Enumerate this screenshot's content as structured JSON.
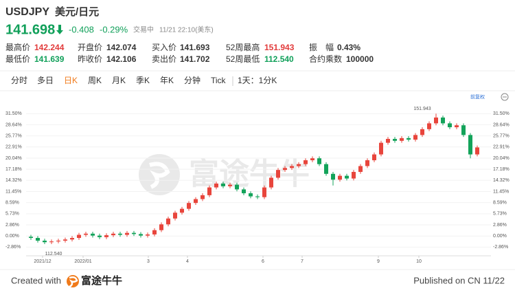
{
  "header": {
    "symbol": "USDJPY",
    "name": "美元/日元",
    "price": "141.698",
    "change": "-0.408",
    "change_pct": "-0.29%",
    "status": "交易中",
    "time": "11/21 22:10(美东)"
  },
  "stats": [
    [
      {
        "label": "最高价",
        "value": "142.244",
        "color": "#e23b3b"
      },
      {
        "label": "开盘价",
        "value": "142.074",
        "color": "#333333"
      },
      {
        "label": "买入价",
        "value": "141.693",
        "color": "#333333"
      },
      {
        "label": "52周最高",
        "value": "151.943",
        "color": "#e23b3b"
      },
      {
        "label": "振　幅",
        "value": "0.43%",
        "color": "#333333"
      }
    ],
    [
      {
        "label": "最低价",
        "value": "141.639",
        "color": "#11a05a"
      },
      {
        "label": "昨收价",
        "value": "142.106",
        "color": "#333333"
      },
      {
        "label": "卖出价",
        "value": "141.702",
        "color": "#333333"
      },
      {
        "label": "52周最低",
        "value": "112.540",
        "color": "#11a05a"
      },
      {
        "label": "合约乘数",
        "value": "100000",
        "color": "#333333"
      }
    ]
  ],
  "tabs": [
    "分时",
    "多日",
    "日K",
    "周K",
    "月K",
    "季K",
    "年K",
    "分钟",
    "Tick",
    "1天：1分K"
  ],
  "chart_data": {
    "type": "candlestick",
    "adjust_label": "前复权",
    "watermark": "富途牛牛",
    "annotations": {
      "high": "151.943",
      "low": "112.540"
    },
    "up_color": "#e8453c",
    "down_color": "#13a35a",
    "grid": true,
    "x": [
      0,
      1,
      2,
      3,
      4,
      5,
      6,
      7,
      8,
      9,
      10,
      11,
      12,
      13,
      14,
      15,
      16,
      17,
      18,
      19,
      20,
      21,
      22,
      23,
      24,
      25,
      26,
      27,
      28,
      29,
      30,
      31,
      32,
      33,
      34,
      35,
      36,
      37,
      38,
      39,
      40,
      41,
      42,
      43,
      44,
      45,
      46,
      47,
      48,
      49,
      50,
      51,
      52,
      53,
      54,
      55,
      56,
      57,
      58,
      59,
      60,
      61,
      62,
      63,
      64,
      65
    ],
    "open": [
      -0.2,
      -0.5,
      -1.2,
      -1.6,
      -1.4,
      -1.2,
      -0.9,
      -0.5,
      0.3,
      0.6,
      0.1,
      -0.3,
      0.2,
      0.6,
      0.3,
      0.8,
      0.5,
      0.1,
      0.4,
      1.5,
      3.0,
      4.5,
      6.0,
      7.0,
      8.5,
      9.5,
      10.5,
      12.5,
      13.5,
      12.8,
      13.2,
      12.0,
      11.0,
      10.2,
      10.0,
      12.5,
      15.0,
      17.0,
      17.5,
      18.0,
      18.5,
      19.5,
      20.0,
      18.5,
      16.0,
      14.5,
      15.5,
      14.8,
      16.5,
      18.0,
      19.5,
      21.0,
      24.0,
      25.0,
      24.5,
      25.2,
      24.8,
      26.0,
      27.5,
      29.0,
      30.5,
      29.0,
      28.0,
      28.5,
      26.0,
      21.0
    ],
    "high": [
      0.3,
      0.0,
      -0.7,
      -0.9,
      -0.7,
      -0.4,
      0.0,
      0.8,
      1.1,
      1.1,
      0.6,
      0.7,
      1.1,
      1.1,
      1.3,
      1.3,
      1.0,
      0.9,
      2.0,
      3.5,
      5.0,
      6.5,
      7.5,
      9.0,
      10.0,
      11.0,
      13.0,
      14.0,
      14.0,
      13.7,
      13.7,
      12.5,
      11.5,
      10.7,
      13.0,
      15.5,
      17.5,
      18.0,
      18.5,
      19.0,
      20.0,
      20.5,
      20.5,
      19.0,
      16.5,
      16.0,
      16.0,
      17.0,
      18.5,
      20.0,
      21.5,
      24.5,
      25.5,
      25.5,
      25.7,
      25.7,
      26.5,
      28.0,
      29.5,
      31.5,
      31.0,
      29.5,
      29.0,
      29.0,
      26.5,
      23.3
    ],
    "low": [
      -1.0,
      -1.7,
      -2.1,
      -2.1,
      -1.9,
      -1.7,
      -1.4,
      -1.0,
      -0.2,
      -0.4,
      -0.8,
      -0.8,
      -0.3,
      -0.2,
      -0.2,
      0.0,
      -0.4,
      -0.4,
      -0.1,
      1.0,
      2.5,
      4.0,
      5.5,
      6.5,
      8.0,
      9.0,
      10.0,
      12.0,
      12.3,
      12.3,
      11.5,
      10.5,
      9.7,
      9.5,
      9.5,
      12.0,
      14.5,
      16.5,
      17.0,
      17.5,
      18.0,
      19.0,
      18.0,
      15.5,
      13.0,
      14.0,
      14.3,
      14.3,
      16.0,
      17.5,
      19.0,
      20.5,
      23.5,
      24.0,
      24.0,
      24.3,
      24.3,
      25.5,
      27.0,
      28.5,
      28.5,
      27.5,
      27.5,
      25.5,
      20.0,
      20.5
    ],
    "close": [
      -0.5,
      -1.2,
      -1.6,
      -1.4,
      -1.2,
      -0.9,
      -0.5,
      0.3,
      0.6,
      0.1,
      -0.3,
      0.2,
      0.6,
      0.3,
      0.8,
      0.5,
      0.1,
      0.4,
      1.5,
      3.0,
      4.5,
      6.0,
      7.0,
      8.5,
      9.5,
      10.5,
      12.5,
      13.5,
      12.8,
      13.2,
      12.0,
      11.0,
      10.2,
      10.0,
      12.5,
      15.0,
      17.0,
      17.5,
      18.0,
      18.5,
      19.5,
      20.0,
      18.5,
      16.0,
      14.5,
      15.5,
      14.8,
      16.5,
      18.0,
      19.5,
      21.0,
      24.0,
      25.0,
      24.5,
      25.2,
      24.8,
      26.0,
      27.5,
      29.0,
      30.5,
      29.0,
      28.0,
      28.5,
      26.0,
      21.0,
      22.8
    ],
    "xlim": [
      -0.5,
      65.5
    ],
    "xticks": [
      {
        "value": 1.7,
        "label": "2021/12"
      },
      {
        "value": 7.6,
        "label": "2022/01"
      },
      {
        "value": 17.1,
        "label": "3"
      },
      {
        "value": 22.8,
        "label": "4"
      },
      {
        "value": 33.8,
        "label": "6"
      },
      {
        "value": 39.5,
        "label": "7"
      },
      {
        "value": 50.6,
        "label": "9"
      },
      {
        "value": 56.5,
        "label": "10"
      }
    ],
    "ylim": [
      -5.1,
      34.2
    ],
    "yticks": [
      {
        "value": -2.86,
        "label": "-2.86%"
      },
      {
        "value": 0,
        "label": "0.00%"
      },
      {
        "value": 2.86,
        "label": "2.86%"
      },
      {
        "value": 5.73,
        "label": "5.73%"
      },
      {
        "value": 8.59,
        "label": "8.59%"
      },
      {
        "value": 11.45,
        "label": "11.45%"
      },
      {
        "value": 14.32,
        "label": "14.32%"
      },
      {
        "value": 17.18,
        "label": "17.18%"
      },
      {
        "value": 20.04,
        "label": "20.04%"
      },
      {
        "value": 22.91,
        "label": "22.91%"
      },
      {
        "value": 25.77,
        "label": "25.77%"
      },
      {
        "value": 28.64,
        "label": "28.64%"
      },
      {
        "value": 31.5,
        "label": "31.50%"
      }
    ]
  },
  "footer": {
    "created_with": "Created with",
    "brand": "富途牛牛",
    "published": "Published on CN 11/22"
  }
}
